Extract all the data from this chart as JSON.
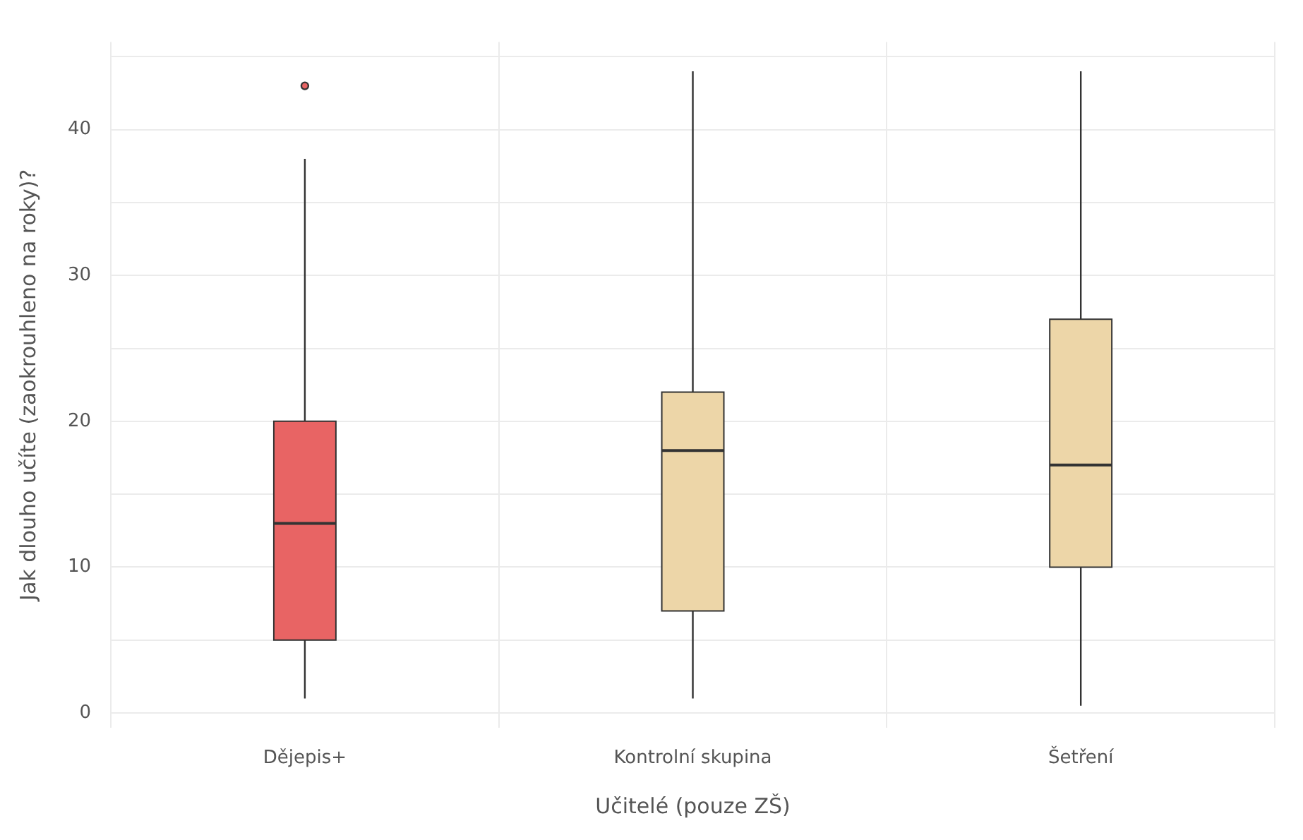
{
  "chart_data": {
    "type": "box",
    "xlabel": "Učitelé (pouze ZŠ)",
    "ylabel": "Jak dlouho učíte (zaokrouhleno na roky)?",
    "categories": [
      "Dějepis+",
      "Kontrolní skupina",
      "Šetření"
    ],
    "colors": [
      "#e86464",
      "#edd6a8",
      "#edd6a8"
    ],
    "boxes": [
      {
        "low": 1,
        "q1": 5,
        "median": 13,
        "q3": 20,
        "high": 38,
        "outliers": [
          43
        ]
      },
      {
        "low": 1,
        "q1": 7,
        "median": 18,
        "q3": 22,
        "high": 44
      },
      {
        "low": 0.5,
        "q1": 10,
        "median": 17,
        "q3": 27,
        "high": 44
      }
    ],
    "ylim": [
      -1,
      46
    ],
    "yticks": [
      0,
      {
        "value": 5,
        "label": null
      },
      10,
      {
        "value": 15,
        "label": null
      },
      20,
      {
        "value": 25,
        "label": null
      },
      30,
      {
        "value": 35,
        "label": null
      },
      40,
      {
        "value": 45,
        "label": null
      }
    ],
    "grid": true
  }
}
